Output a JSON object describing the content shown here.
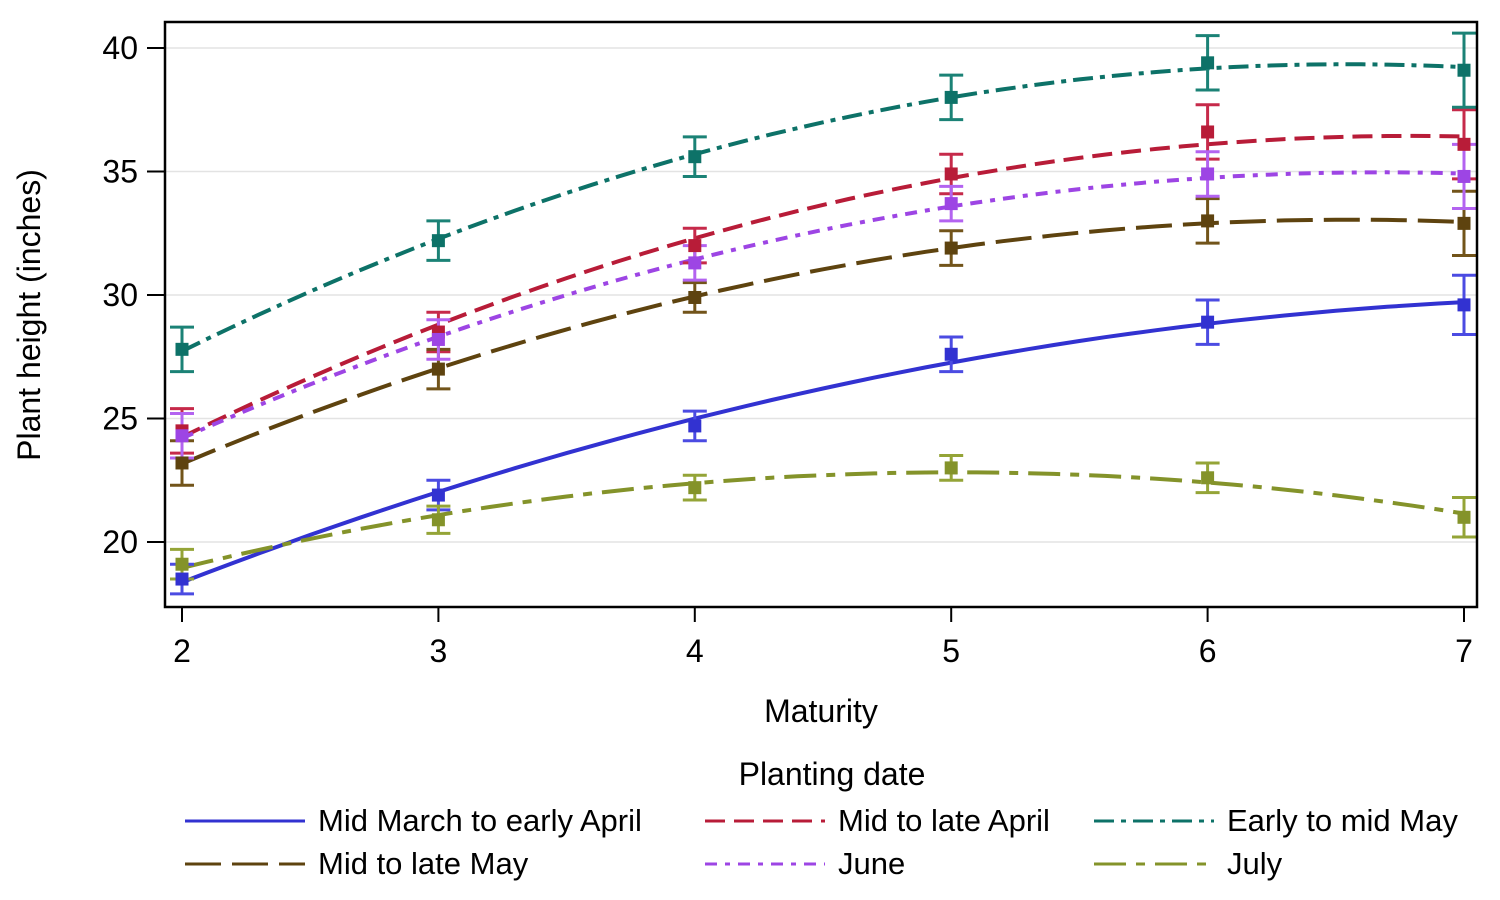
{
  "chart_data": {
    "type": "line",
    "subtype": "fitted-curves-with-observed-means-and-error-bars",
    "x": [
      2,
      3,
      4,
      5,
      6,
      7
    ],
    "xlabel": "Maturity",
    "ylabel": "Plant height (inches)",
    "ylim": [
      17.5,
      41
    ],
    "yticks": [
      20,
      25,
      30,
      35,
      40
    ],
    "grid": true,
    "marker": "square",
    "fit": "quadratic",
    "legend_title": "Planting date",
    "legend_position": "bottom",
    "series": [
      {
        "name": "Mid March to early April",
        "color": "#3232d1",
        "err_color": "#4b4be2",
        "pattern": "solid",
        "dash": "",
        "values": [
          18.5,
          21.9,
          24.7,
          27.6,
          28.9,
          29.6
        ],
        "err": [
          0.6,
          0.6,
          0.6,
          0.7,
          0.9,
          1.2
        ]
      },
      {
        "name": "Mid to late April",
        "color": "#b81c38",
        "err_color": "#c62a4a",
        "pattern": "dash",
        "dash": "20 9",
        "values": [
          24.5,
          28.5,
          32.0,
          34.9,
          36.6,
          36.1
        ],
        "err": [
          0.9,
          0.8,
          0.7,
          0.8,
          1.1,
          1.4
        ]
      },
      {
        "name": "Early to mid May",
        "color": "#0d7268",
        "err_color": "#1b8276",
        "pattern": "dash-dot",
        "dash": "20 7 5 7",
        "values": [
          27.8,
          32.2,
          35.6,
          38.0,
          39.4,
          39.1
        ],
        "err": [
          0.9,
          0.8,
          0.8,
          0.9,
          1.1,
          1.5
        ]
      },
      {
        "name": "Mid to late May",
        "color": "#5e430f",
        "err_color": "#72541a",
        "pattern": "long-dash",
        "dash": "36 11",
        "values": [
          23.2,
          27.0,
          29.9,
          31.9,
          33.0,
          32.9
        ],
        "err": [
          0.9,
          0.8,
          0.6,
          0.7,
          0.9,
          1.3
        ]
      },
      {
        "name": "June",
        "color": "#9d45e4",
        "err_color": "#b363f0",
        "pattern": "short-dash-dot",
        "dash": "12 8 5 8",
        "values": [
          24.3,
          28.2,
          31.3,
          33.7,
          34.9,
          34.8
        ],
        "err": [
          0.9,
          0.8,
          0.7,
          0.7,
          0.9,
          1.3
        ]
      },
      {
        "name": "July",
        "color": "#84932a",
        "err_color": "#94a437",
        "pattern": "long-dash-dot",
        "dash": "32 10 9 10",
        "values": [
          19.1,
          20.9,
          22.2,
          23.0,
          22.6,
          21.0
        ],
        "err": [
          0.6,
          0.55,
          0.5,
          0.5,
          0.6,
          0.8
        ]
      }
    ],
    "colors": {
      "grid": "#e3e3e3",
      "axis": "#000000",
      "background": "#ffffff"
    }
  }
}
